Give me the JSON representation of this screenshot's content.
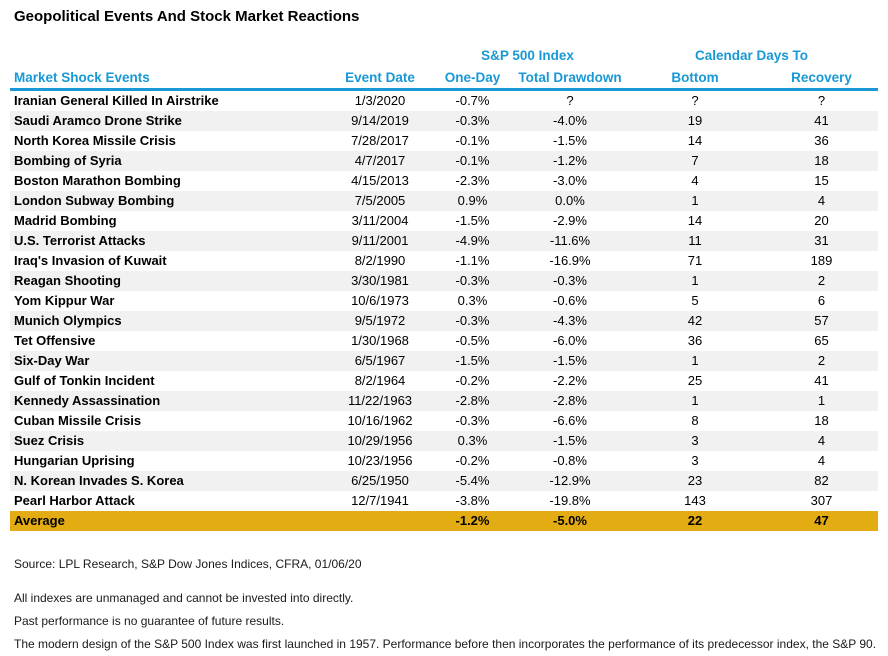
{
  "title": "Geopolitical Events And Stock Market Reactions",
  "colors": {
    "accent_blue": "#1899D6",
    "average_gold": "#E3AC12",
    "row_stripe": "#F1F1F1"
  },
  "chart_data": {
    "type": "table",
    "title": "Geopolitical Events And Stock Market Reactions",
    "group_headers": {
      "sp500": "S&P 500 Index",
      "calendar": "Calendar Days To"
    },
    "columns": [
      "Market Shock Events",
      "Event Date",
      "One-Day",
      "Total Drawdown",
      "Bottom",
      "Recovery"
    ],
    "rows": [
      [
        "Iranian General Killed In Airstrike",
        "1/3/2020",
        "-0.7%",
        "?",
        "?",
        "?"
      ],
      [
        "Saudi Aramco Drone Strike",
        "9/14/2019",
        "-0.3%",
        "-4.0%",
        "19",
        "41"
      ],
      [
        "North Korea Missile Crisis",
        "7/28/2017",
        "-0.1%",
        "-1.5%",
        "14",
        "36"
      ],
      [
        "Bombing of Syria",
        "4/7/2017",
        "-0.1%",
        "-1.2%",
        "7",
        "18"
      ],
      [
        "Boston Marathon Bombing",
        "4/15/2013",
        "-2.3%",
        "-3.0%",
        "4",
        "15"
      ],
      [
        "London Subway Bombing",
        "7/5/2005",
        "0.9%",
        "0.0%",
        "1",
        "4"
      ],
      [
        "Madrid Bombing",
        "3/11/2004",
        "-1.5%",
        "-2.9%",
        "14",
        "20"
      ],
      [
        "U.S. Terrorist Attacks",
        "9/11/2001",
        "-4.9%",
        "-11.6%",
        "11",
        "31"
      ],
      [
        "Iraq's Invasion of Kuwait",
        "8/2/1990",
        "-1.1%",
        "-16.9%",
        "71",
        "189"
      ],
      [
        "Reagan Shooting",
        "3/30/1981",
        "-0.3%",
        "-0.3%",
        "1",
        "2"
      ],
      [
        "Yom Kippur War",
        "10/6/1973",
        "0.3%",
        "-0.6%",
        "5",
        "6"
      ],
      [
        "Munich Olympics",
        "9/5/1972",
        "-0.3%",
        "-4.3%",
        "42",
        "57"
      ],
      [
        "Tet Offensive",
        "1/30/1968",
        "-0.5%",
        "-6.0%",
        "36",
        "65"
      ],
      [
        "Six-Day War",
        "6/5/1967",
        "-1.5%",
        "-1.5%",
        "1",
        "2"
      ],
      [
        "Gulf of Tonkin Incident",
        "8/2/1964",
        "-0.2%",
        "-2.2%",
        "25",
        "41"
      ],
      [
        "Kennedy Assassination",
        "11/22/1963",
        "-2.8%",
        "-2.8%",
        "1",
        "1"
      ],
      [
        "Cuban Missile Crisis",
        "10/16/1962",
        "-0.3%",
        "-6.6%",
        "8",
        "18"
      ],
      [
        "Suez Crisis",
        "10/29/1956",
        "0.3%",
        "-1.5%",
        "3",
        "4"
      ],
      [
        "Hungarian Uprising",
        "10/23/1956",
        "-0.2%",
        "-0.8%",
        "3",
        "4"
      ],
      [
        "N. Korean Invades S. Korea",
        "6/25/1950",
        "-5.4%",
        "-12.9%",
        "23",
        "82"
      ],
      [
        "Pearl Harbor Attack",
        "12/7/1941",
        "-3.8%",
        "-19.8%",
        "143",
        "307"
      ]
    ],
    "average_row": [
      "Average",
      "",
      "-1.2%",
      "-5.0%",
      "22",
      "47"
    ]
  },
  "footer": {
    "source": "Source: LPL Research, S&P Dow Jones Indices, CFRA, 01/06/20",
    "notes": [
      "All indexes are unmanaged and cannot be invested into directly.",
      "Past performance is no guarantee of future results.",
      "The modern design of the S&P 500 Index was first launched in 1957. Performance before then incorporates the performance of its predecessor index, the S&P 90."
    ]
  }
}
